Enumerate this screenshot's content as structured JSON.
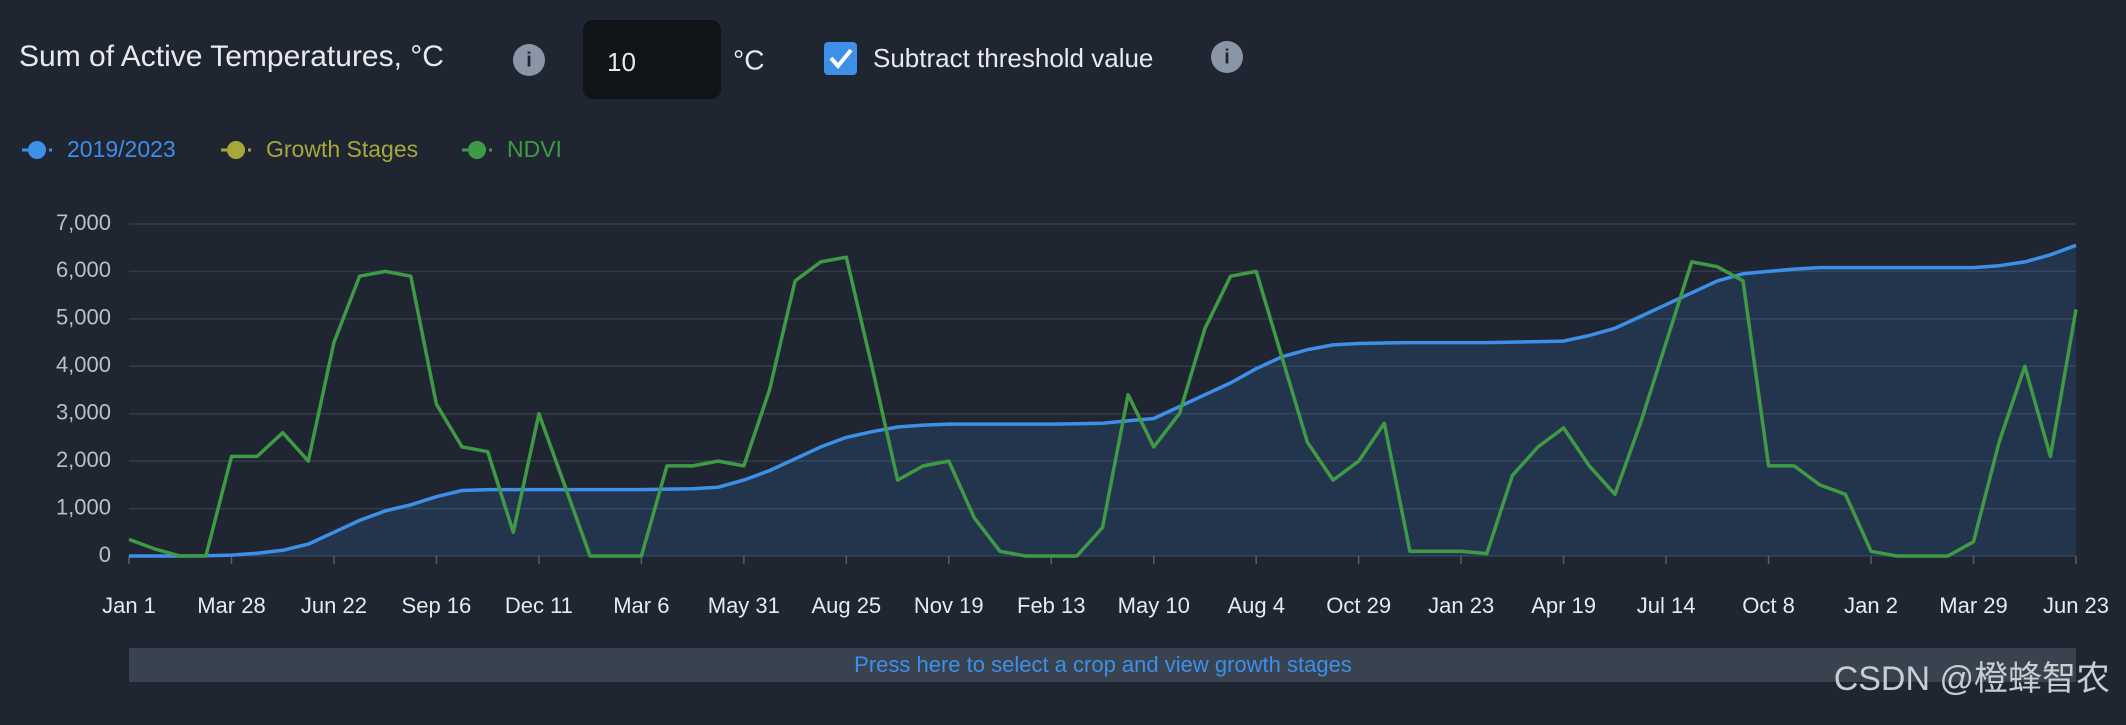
{
  "header": {
    "title": "Sum of Active Temperatures, °C",
    "threshold": 10,
    "threshold_unit": "°C",
    "checkbox_label": "Subtract threshold value",
    "checked": true
  },
  "chart_data": {
    "type": "line",
    "categories": [
      "Jan 1",
      null,
      null,
      null,
      "Mar 28",
      null,
      null,
      null,
      "Jun 22",
      null,
      null,
      null,
      "Sep 16",
      null,
      null,
      null,
      "Dec 11",
      null,
      null,
      null,
      "Mar 6",
      null,
      null,
      null,
      "May 31",
      null,
      null,
      null,
      "Aug 25",
      null,
      null,
      null,
      "Nov 19",
      null,
      null,
      null,
      "Feb 13",
      null,
      null,
      null,
      "May 10",
      null,
      null,
      null,
      "Aug 4",
      null,
      null,
      null,
      "Oct 29",
      null,
      null,
      null,
      "Jan 23",
      null,
      null,
      null,
      "Apr 19",
      null,
      null,
      null,
      "Jul 14",
      null,
      null,
      null,
      "Oct 8",
      null,
      null,
      null,
      "Jan 2",
      null,
      null,
      null,
      "Mar 29",
      null,
      null,
      null,
      "Jun 23"
    ],
    "series": [
      {
        "name": "2019/2023",
        "color": "#3d8fe8",
        "fill": true,
        "values": [
          0,
          0,
          0,
          5,
          20,
          60,
          120,
          250,
          500,
          750,
          950,
          1080,
          1250,
          1380,
          1400,
          1400,
          1400,
          1400,
          1400,
          1400,
          1400,
          1410,
          1420,
          1450,
          1600,
          1800,
          2050,
          2300,
          2500,
          2620,
          2720,
          2760,
          2780,
          2780,
          2780,
          2780,
          2780,
          2790,
          2800,
          2850,
          2900,
          3150,
          3400,
          3650,
          3950,
          4200,
          4350,
          4450,
          4480,
          4490,
          4500,
          4500,
          4500,
          4500,
          4510,
          4520,
          4530,
          4650,
          4800,
          5050,
          5300,
          5550,
          5800,
          5950,
          6000,
          6050,
          6080,
          6080,
          6080,
          6080,
          6080,
          6080,
          6080,
          6120,
          6200,
          6350,
          6550
        ]
      },
      {
        "name": "Growth Stages",
        "color": "#a7a83a",
        "fill": false,
        "values": [
          null,
          null,
          null,
          null,
          null,
          null,
          null,
          null,
          null,
          null,
          null,
          null,
          null,
          null,
          null,
          null,
          null,
          null,
          null,
          null,
          null,
          null,
          null,
          null,
          null,
          null,
          null,
          null,
          null,
          null,
          null,
          null,
          null,
          null,
          null,
          null,
          null,
          null,
          null,
          null,
          null,
          null,
          null,
          null,
          null,
          null,
          null,
          null,
          null,
          null,
          null,
          null,
          null,
          null,
          null,
          null,
          null,
          null,
          null,
          null,
          null,
          null,
          null,
          null,
          null,
          null,
          null,
          null,
          null,
          null,
          null,
          null,
          null,
          null,
          null,
          null,
          null
        ]
      },
      {
        "name": "NDVI",
        "color": "#3f9a46",
        "fill": false,
        "values": [
          350,
          150,
          0,
          0,
          2100,
          2100,
          2600,
          2000,
          4500,
          5900,
          6000,
          5900,
          3200,
          2300,
          2200,
          500,
          3000,
          1500,
          0,
          0,
          0,
          1900,
          1900,
          2000,
          1900,
          3500,
          5800,
          6200,
          6300,
          4000,
          1600,
          1900,
          2000,
          800,
          100,
          0,
          0,
          0,
          600,
          3400,
          2300,
          3000,
          4800,
          5900,
          6000,
          4200,
          2400,
          1600,
          2000,
          2800,
          100,
          100,
          100,
          50,
          1700,
          2300,
          2700,
          1900,
          1300,
          2800,
          4500,
          6200,
          6100,
          5800,
          1900,
          1900,
          1500,
          1300,
          100,
          0,
          0,
          0,
          300,
          2400,
          4000,
          2100,
          5200
        ]
      }
    ],
    "ylim": [
      0,
      7000
    ],
    "yticks": [
      0,
      {
        "value": 1000,
        "label": "1,000"
      },
      {
        "value": 2000,
        "label": "2,000"
      },
      {
        "value": 3000,
        "label": "3,000"
      },
      {
        "value": 4000,
        "label": "4,000"
      },
      {
        "value": 5000,
        "label": "5,000"
      },
      {
        "value": 6000,
        "label": "6,000"
      },
      {
        "value": 7000,
        "label": "7,000"
      }
    ],
    "grid": true
  },
  "crop_bar": "Press here to select a crop and view growth stages",
  "watermark": "CSDN @橙蜂智农"
}
